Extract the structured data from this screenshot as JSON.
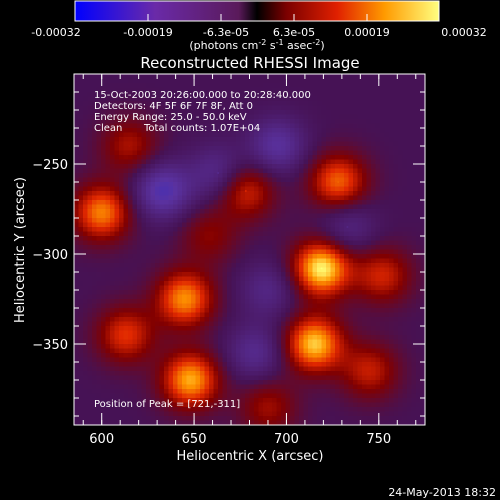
{
  "chart_data": {
    "type": "heatmap",
    "title": "Reconstructed RHESSI Image",
    "xlabel": "Heliocentric X (arcsec)",
    "ylabel": "Heliocentric Y (arcsec)",
    "xlim": [
      585,
      775
    ],
    "ylim": [
      -395,
      -200
    ],
    "x_ticks": [
      600,
      650,
      700,
      750
    ],
    "y_ticks": [
      -250,
      -300,
      -350
    ],
    "colorbar": {
      "ticks": [
        "-0.00032",
        "-0.00019",
        "-6.3e-05",
        "6.3e-05",
        "0.00019",
        "0.00032"
      ],
      "units_text": "(photons cm",
      "units_sup1": "-2",
      "units_mid": " s",
      "units_sup2": "-1",
      "units_end": " asec",
      "units_sup3": "-2",
      "units_close": ")",
      "range": [
        -0.00032,
        0.00032
      ]
    },
    "annotations": {
      "time": "15-Oct-2003 20:26:00.000 to 20:28:40.000",
      "detectors": "Detectors: 4F 5F 6F 7F 8F, Att 0",
      "energy": "Energy Range: 25.0 - 50.0 keV",
      "method": "Clean",
      "counts": "Total counts: 1.07E+04",
      "peak": "Position of Peak = [721,-311]"
    },
    "sources": [
      {
        "x": 719,
        "y": -308,
        "value": 0.00032
      },
      {
        "x": 715,
        "y": -350,
        "value": 0.00029
      },
      {
        "x": 648,
        "y": -370,
        "value": 0.00027
      },
      {
        "x": 645,
        "y": -325,
        "value": 0.00025
      },
      {
        "x": 600,
        "y": -277,
        "value": 0.00024
      },
      {
        "x": 728,
        "y": -260,
        "value": 0.00022
      },
      {
        "x": 613,
        "y": -345,
        "value": 0.00018
      },
      {
        "x": 678,
        "y": -265,
        "value": 0.00017
      },
      {
        "x": 752,
        "y": -312,
        "value": 0.00016
      },
      {
        "x": 745,
        "y": -365,
        "value": 0.00015
      },
      {
        "x": 615,
        "y": -240,
        "value": 0.00013
      },
      {
        "x": 690,
        "y": -385,
        "value": 0.00012
      },
      {
        "x": 658,
        "y": -290,
        "value": 0.0001
      },
      {
        "x": 633,
        "y": -265,
        "value": -0.00019
      },
      {
        "x": 663,
        "y": -255,
        "value": -0.00012
      },
      {
        "x": 695,
        "y": -240,
        "value": -0.00015
      },
      {
        "x": 690,
        "y": -320,
        "value": -0.0001
      },
      {
        "x": 733,
        "y": -285,
        "value": -0.0001
      },
      {
        "x": 683,
        "y": -355,
        "value": -0.00012
      }
    ]
  },
  "footer": {
    "date": "24-May-2013 18:32"
  }
}
